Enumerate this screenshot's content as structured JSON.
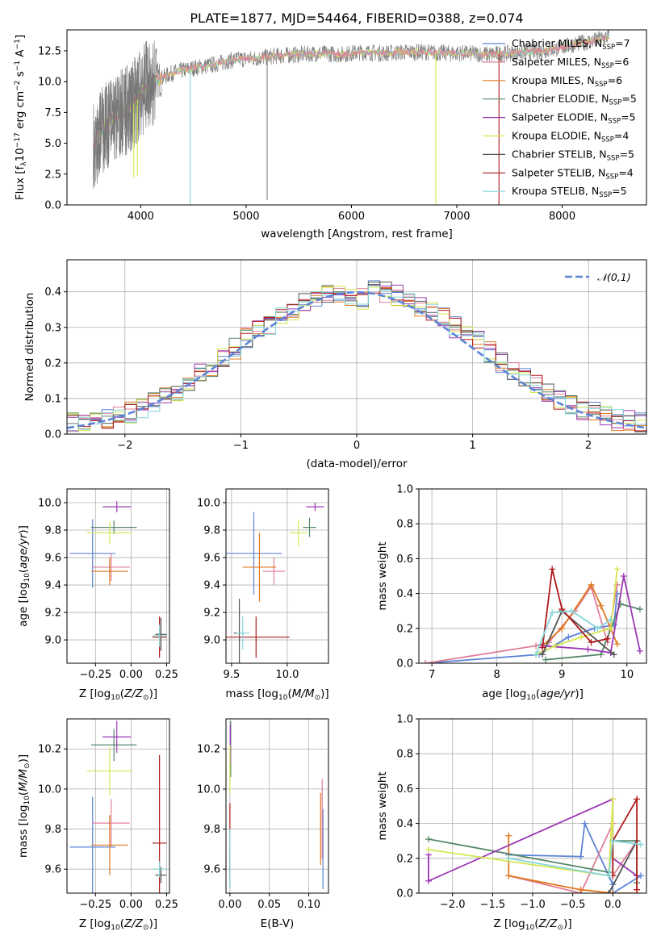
{
  "chart_data": [
    {
      "id": "spectrum",
      "type": "line",
      "title": "PLATE=1877, MJD=54464, FIBERID=0388, z=0.074",
      "xlabel": "wavelength [Angstrom, rest frame]",
      "ylabel": "Flux [f_λ 10^-17 erg cm^-2 s^-1 A^-1]",
      "xlim": [
        3300,
        8800
      ],
      "ylim": [
        0,
        14.2
      ],
      "xticks": [
        4000,
        5000,
        6000,
        7000,
        8000
      ],
      "yticks": [
        0.0,
        2.5,
        5.0,
        7.5,
        10.0,
        12.5
      ],
      "grid": false,
      "legend": "top-right",
      "continuum_x": [
        3550,
        3620,
        3700,
        3800,
        3900,
        3960,
        4050,
        4150,
        4300,
        4500,
        4700,
        4900,
        5100,
        5300,
        5500,
        5700,
        5900,
        6100,
        6300,
        6500,
        6700,
        6900,
        7100,
        7300,
        7500,
        7700,
        7900,
        8100,
        8300,
        8450
      ],
      "continuum_y": [
        5.0,
        5.8,
        6.8,
        7.2,
        8.0,
        8.4,
        9.6,
        10.1,
        10.7,
        11.1,
        11.4,
        11.8,
        11.9,
        12.1,
        12.2,
        12.3,
        12.2,
        12.4,
        12.3,
        12.4,
        12.4,
        12.3,
        12.3,
        12.2,
        12.3,
        12.4,
        12.6,
        13.0,
        13.3,
        13.7
      ],
      "absorption_lines": [
        {
          "x": 3934,
          "min": 2.2
        },
        {
          "x": 3969,
          "min": 2.3
        },
        {
          "x": 4470,
          "min": 0.0
        },
        {
          "x": 5200,
          "min": 0.4
        },
        {
          "x": 6800,
          "min": 0.0
        },
        {
          "x": 7400,
          "min": 0.0
        }
      ],
      "legend_labels": [
        {
          "text": "Chabrier MILES, N",
          "sub": "SSP",
          "tail": "=7"
        },
        {
          "text": "Salpeter MILES, N",
          "sub": "SSP",
          "tail": "=6"
        },
        {
          "text": "Kroupa MILES, N",
          "sub": "SSP",
          "tail": "=6"
        },
        {
          "text": "Chabrier ELODIE, N",
          "sub": "SSP",
          "tail": "=5"
        },
        {
          "text": "Salpeter ELODIE, N",
          "sub": "SSP",
          "tail": "=5"
        },
        {
          "text": "Kroupa ELODIE, N",
          "sub": "SSP",
          "tail": "=4"
        },
        {
          "text": "Chabrier STELIB, N",
          "sub": "SSP",
          "tail": "=5"
        },
        {
          "text": "Salpeter STELIB, N",
          "sub": "SSP",
          "tail": "=4"
        },
        {
          "text": "Kroupa STELIB, N",
          "sub": "SSP",
          "tail": "=5"
        }
      ]
    },
    {
      "id": "residuals",
      "type": "line",
      "xlabel": "(data-model)/error",
      "ylabel": "Normed distribution",
      "xlim": [
        -2.5,
        2.5
      ],
      "ylim": [
        0,
        0.49
      ],
      "xticks": [
        -2,
        -1,
        0,
        1,
        2
      ],
      "yticks": [
        0.0,
        0.1,
        0.2,
        0.3,
        0.4
      ],
      "grid": true,
      "legend": "top-right",
      "reference_curve": {
        "label": "𝒩(0,1)",
        "mean": 0,
        "sigma": 1
      },
      "histogram_bins": [
        -2.5,
        -2.4,
        -2.3,
        -2.2,
        -2.1,
        -2.0,
        -1.9,
        -1.8,
        -1.7,
        -1.6,
        -1.5,
        -1.4,
        -1.3,
        -1.2,
        -1.1,
        -1.0,
        -0.9,
        -0.8,
        -0.7,
        -0.6,
        -0.5,
        -0.4,
        -0.3,
        -0.2,
        -0.1,
        0.0,
        0.1,
        0.2,
        0.3,
        0.4,
        0.5,
        0.6,
        0.7,
        0.8,
        0.9,
        1.0,
        1.1,
        1.2,
        1.3,
        1.4,
        1.5,
        1.6,
        1.7,
        1.8,
        1.9,
        2.0,
        2.1,
        2.2,
        2.3,
        2.4,
        2.5
      ],
      "histogram_reference": [
        0.03,
        0.035,
        0.04,
        0.04,
        0.05,
        0.06,
        0.07,
        0.09,
        0.1,
        0.12,
        0.14,
        0.17,
        0.19,
        0.22,
        0.24,
        0.27,
        0.29,
        0.31,
        0.34,
        0.35,
        0.37,
        0.38,
        0.39,
        0.4,
        0.39,
        0.38,
        0.42,
        0.4,
        0.39,
        0.38,
        0.36,
        0.34,
        0.33,
        0.3,
        0.28,
        0.26,
        0.23,
        0.2,
        0.18,
        0.16,
        0.14,
        0.12,
        0.1,
        0.08,
        0.07,
        0.06,
        0.05,
        0.04,
        0.04,
        0.03
      ]
    },
    {
      "id": "age-vs-Z",
      "type": "scatter",
      "xlabel": "Z [log10(Z/Z⊙)]",
      "ylabel": "age [log10(age/yr)]",
      "xlim": [
        -0.45,
        0.27
      ],
      "ylim": [
        8.83,
        10.1
      ],
      "xticks": [
        -0.25,
        0.0,
        0.25
      ],
      "yticks": [
        9.0,
        9.2,
        9.4,
        9.6,
        9.8,
        10.0
      ],
      "points": [
        {
          "x": -0.27,
          "xerr": 0.16,
          "y": 9.63,
          "yerr": 0.25
        },
        {
          "x": -0.14,
          "xerr": 0.13,
          "y": 9.53,
          "yerr": 0.1
        },
        {
          "x": -0.15,
          "xerr": 0.13,
          "y": 9.5,
          "yerr": 0.1
        },
        {
          "x": -0.12,
          "xerr": 0.16,
          "y": 9.82,
          "yerr": 0.05
        },
        {
          "x": -0.1,
          "xerr": 0.1,
          "y": 9.97,
          "yerr": 0.04
        },
        {
          "x": -0.15,
          "xerr": 0.16,
          "y": 9.78,
          "yerr": 0.08
        },
        {
          "x": 0.21,
          "xerr": 0.04,
          "y": 9.04,
          "yerr": 0.12
        },
        {
          "x": 0.2,
          "xerr": 0.05,
          "y": 9.02,
          "yerr": 0.15
        },
        {
          "x": 0.2,
          "xerr": 0.05,
          "y": 9.03,
          "yerr": 0.08
        }
      ]
    },
    {
      "id": "age-vs-mass",
      "type": "scatter",
      "xlabel": "mass [log10(M/M⊙)]",
      "ylabel": "",
      "xlim": [
        9.45,
        10.37
      ],
      "ylim": [
        8.83,
        10.1
      ],
      "xticks": [
        9.5,
        10.0
      ],
      "yticks": [
        9.0,
        9.2,
        9.4,
        9.6,
        9.8,
        10.0
      ],
      "points": [
        {
          "x": 9.7,
          "xerr": 0.25,
          "y": 9.63,
          "yerr": 0.3
        },
        {
          "x": 9.88,
          "xerr": 0.1,
          "y": 9.5,
          "yerr": 0.1
        },
        {
          "x": 9.75,
          "xerr": 0.15,
          "y": 9.53,
          "yerr": 0.25
        },
        {
          "x": 10.2,
          "xerr": 0.06,
          "y": 9.82,
          "yerr": 0.07
        },
        {
          "x": 10.25,
          "xerr": 0.08,
          "y": 9.97,
          "yerr": 0.03
        },
        {
          "x": 10.1,
          "xerr": 0.08,
          "y": 9.78,
          "yerr": 0.1
        },
        {
          "x": 9.57,
          "xerr": 0.05,
          "y": 9.05,
          "yerr": 0.25
        },
        {
          "x": 9.72,
          "xerr": 0.3,
          "y": 9.02,
          "yerr": 0.15
        },
        {
          "x": 9.6,
          "xerr": 0.06,
          "y": 9.05,
          "yerr": 0.12
        }
      ]
    },
    {
      "id": "massweight-vs-age",
      "type": "line",
      "xlabel": "age [log10(age/yr)]",
      "ylabel": "mass weight",
      "xlim": [
        6.8,
        10.3
      ],
      "ylim": [
        0,
        1.0
      ],
      "xticks": [
        7,
        8,
        9,
        10
      ],
      "yticks": [
        0.0,
        0.2,
        0.4,
        0.6,
        0.8,
        1.0
      ],
      "grid": true,
      "series": [
        {
          "x": [
            6.9,
            8.65,
            9.1,
            9.5,
            9.8,
            9.85
          ],
          "y": [
            0.0,
            0.05,
            0.15,
            0.2,
            0.22,
            0.4
          ]
        },
        {
          "x": [
            6.9,
            8.6,
            8.8,
            9.2,
            9.45,
            9.7,
            9.85
          ],
          "y": [
            0.0,
            0.1,
            0.12,
            0.3,
            0.44,
            0.12,
            0.45
          ]
        },
        {
          "x": [
            8.7,
            9.0,
            9.45,
            9.6,
            9.85
          ],
          "y": [
            0.1,
            0.2,
            0.45,
            0.33,
            0.11
          ]
        },
        {
          "x": [
            8.75,
            9.6,
            9.9,
            10.2
          ],
          "y": [
            0.02,
            0.05,
            0.34,
            0.31
          ]
        },
        {
          "x": [
            8.7,
            9.4,
            9.75,
            9.95,
            10.2
          ],
          "y": [
            0.1,
            0.08,
            0.06,
            0.5,
            0.07
          ]
        },
        {
          "x": [
            8.6,
            8.9,
            9.3,
            9.75,
            9.85
          ],
          "y": [
            0.05,
            0.1,
            0.15,
            0.2,
            0.54
          ]
        },
        {
          "x": [
            8.7,
            9.0,
            9.8
          ],
          "y": [
            0.05,
            0.3,
            0.05
          ]
        },
        {
          "x": [
            8.7,
            8.85,
            9.0,
            9.45,
            9.7
          ],
          "y": [
            0.09,
            0.54,
            0.31,
            0.12,
            0.14
          ]
        },
        {
          "x": [
            8.6,
            8.85,
            9.15,
            9.55,
            9.75
          ],
          "y": [
            0.05,
            0.29,
            0.3,
            0.2,
            0.25
          ]
        }
      ]
    },
    {
      "id": "mass-vs-Z",
      "type": "scatter",
      "xlabel": "Z [log10(Z/Z⊙)]",
      "ylabel": "mass [log10(M/M⊙)]",
      "xlim": [
        -0.45,
        0.27
      ],
      "ylim": [
        9.48,
        10.35
      ],
      "xticks": [
        -0.25,
        0.0,
        0.25
      ],
      "yticks": [
        9.6,
        9.8,
        10.0,
        10.2
      ],
      "points": [
        {
          "x": -0.27,
          "xerr": 0.16,
          "y": 9.71,
          "yerr": 0.25
        },
        {
          "x": -0.14,
          "xerr": 0.13,
          "y": 9.83,
          "yerr": 0.12
        },
        {
          "x": -0.15,
          "xerr": 0.13,
          "y": 9.72,
          "yerr": 0.15
        },
        {
          "x": -0.12,
          "xerr": 0.16,
          "y": 10.22,
          "yerr": 0.08
        },
        {
          "x": -0.1,
          "xerr": 0.1,
          "y": 10.26,
          "yerr": 0.08
        },
        {
          "x": -0.15,
          "xerr": 0.16,
          "y": 10.09,
          "yerr": 0.12
        },
        {
          "x": 0.21,
          "xerr": 0.04,
          "y": 9.57,
          "yerr": 0.04
        },
        {
          "x": 0.2,
          "xerr": 0.05,
          "y": 9.73,
          "yerr": 0.44
        },
        {
          "x": 0.2,
          "xerr": 0.05,
          "y": 9.6,
          "yerr": 0.04
        }
      ]
    },
    {
      "id": "mass-vs-ebv",
      "type": "scatter",
      "xlabel": "E(B-V)",
      "ylabel": "",
      "xlim": [
        -0.005,
        0.125
      ],
      "ylim": [
        9.48,
        10.35
      ],
      "xticks": [
        0.0,
        0.05,
        0.1
      ],
      "yticks": [
        9.6,
        9.8,
        10.0,
        10.2
      ],
      "points": [
        {
          "x": 0.118,
          "xerr": 0,
          "y": 9.7,
          "yerr": 0.2
        },
        {
          "x": 0.117,
          "xerr": 0,
          "y": 9.85,
          "yerr": 0.2
        },
        {
          "x": 0.115,
          "xerr": 0,
          "y": 9.8,
          "yerr": 0.18
        },
        {
          "x": 0.001,
          "xerr": 0,
          "y": 10.2,
          "yerr": 0.14
        },
        {
          "x": 0.0005,
          "xerr": 0,
          "y": 10.22,
          "yerr": 0.1
        },
        {
          "x": 0.0,
          "xerr": 0,
          "y": 10.1,
          "yerr": 0.12
        },
        {
          "x": 0.0,
          "xerr": 0,
          "y": 9.6,
          "yerr": 0.09
        },
        {
          "x": 0.0,
          "xerr": 0,
          "y": 9.75,
          "yerr": 0.18
        },
        {
          "x": 0.0,
          "xerr": 0,
          "y": 9.65,
          "yerr": 0.15
        }
      ]
    },
    {
      "id": "massweight-vs-Z",
      "type": "line",
      "xlabel": "Z [log10(Z/Z⊙)]",
      "ylabel": "mass weight",
      "xlim": [
        -2.42,
        0.42
      ],
      "ylim": [
        0,
        1.0
      ],
      "xticks": [
        -2.0,
        -1.5,
        -1.0,
        -0.5,
        0.0
      ],
      "yticks": [
        0.0,
        0.2,
        0.4,
        0.6,
        0.8,
        1.0
      ],
      "grid": true,
      "series": [
        {
          "x": [
            -1.3,
            -0.4,
            -0.35,
            0.0,
            0.0,
            0.35
          ],
          "y": [
            0.22,
            0.21,
            0.4,
            0.05,
            0.0,
            0.1
          ]
        },
        {
          "x": [
            -1.3,
            -0.4,
            0.0,
            0.0,
            0.3
          ],
          "y": [
            0.1,
            0.0,
            0.4,
            0.1,
            0.3
          ]
        },
        {
          "x": [
            -1.3,
            -1.3,
            -0.4,
            0.0,
            0.3,
            0.3
          ],
          "y": [
            0.33,
            0.1,
            0.02,
            0.0,
            0.0,
            0.1
          ]
        },
        {
          "x": [
            -2.3,
            -0.05,
            0.0,
            0.3,
            0.3
          ],
          "y": [
            0.31,
            0.12,
            0.3,
            0.3,
            0.06
          ]
        },
        {
          "x": [
            -2.3,
            -2.3,
            0.0,
            0.0,
            0.3
          ],
          "y": [
            0.22,
            0.07,
            0.54,
            0.2,
            0.1
          ]
        },
        {
          "x": [
            -2.3,
            -0.05,
            0.0,
            0.0
          ],
          "y": [
            0.25,
            0.1,
            0.54,
            0.2
          ]
        },
        {
          "x": [
            -0.05,
            0.3
          ],
          "y": [
            0.0,
            0.3
          ]
        },
        {
          "x": [
            0.0,
            0.0,
            0.3,
            0.3
          ],
          "y": [
            0.1,
            0.3,
            0.54,
            0.02
          ]
        },
        {
          "x": [
            -1.3,
            -0.05,
            0.0,
            0.35
          ],
          "y": [
            0.2,
            0.1,
            0.3,
            0.28
          ]
        }
      ]
    }
  ],
  "colors": [
    "#5b84d6",
    "#e07f96",
    "#e0781f",
    "#56886a",
    "#9b37b3",
    "#d6e650",
    "#555555",
    "#b01a1a",
    "#84d6d9"
  ],
  "spectrum_colors": [
    "#808080",
    "#d6e650",
    "#84d6d9",
    "#e07f96"
  ],
  "reference_color": "#5b84d6"
}
